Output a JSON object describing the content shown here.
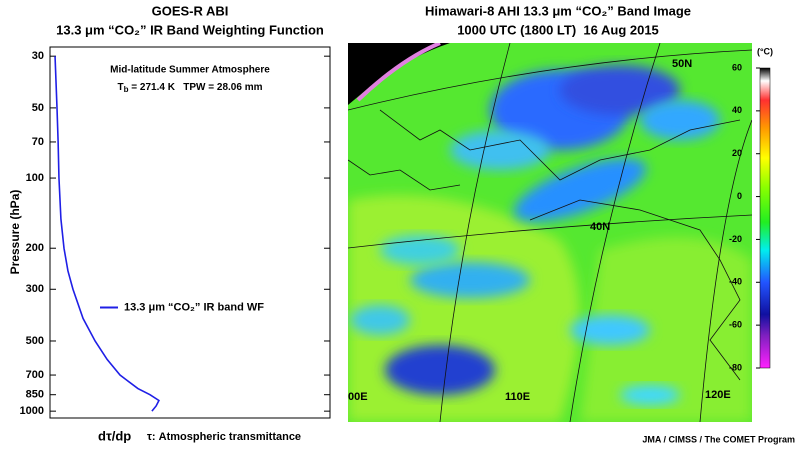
{
  "chart_data": [
    {
      "type": "line",
      "title": "GOES-R ABI",
      "subtitle": "13.3 μm “CO₂” IR Band Weighting Function",
      "annotation": "Mid-latitude Summer Atmosphere",
      "tb_symbol": "T",
      "tb_subscript": "b",
      "tb_text": " = 271.4 K   TPW = 28.06 mm",
      "xlabel": "dτ/dp",
      "xlabel_note": "τ: Atmospheric transmittance",
      "ylabel": "Pressure (hPa)",
      "series": [
        {
          "name": "13.3 μm “CO₂” IR band WF",
          "color": "#1f1fe6",
          "x": [
            0.018,
            0.025,
            0.029,
            0.032,
            0.039,
            0.05,
            0.064,
            0.082,
            0.118,
            0.161,
            0.204,
            0.25,
            0.314,
            0.357,
            0.389,
            0.379,
            0.364
          ],
          "y": [
            30,
            50,
            70,
            100,
            150,
            200,
            250,
            300,
            400,
            500,
            600,
            700,
            800,
            850,
            900,
            950,
            1000
          ]
        }
      ],
      "xlim": [
        0,
        1
      ],
      "ylim": [
        27.4,
        1070
      ],
      "log_y": true,
      "y_reversed": true,
      "yticks": [
        30,
        50,
        70,
        100,
        200,
        300,
        500,
        700,
        850,
        1000
      ],
      "legend": "center"
    },
    {
      "type": "image",
      "title": "Himawari-8 AHI 13.3 μm “CO₂” Band Image",
      "subtitle": "1000 UTC (1800 LT)  16 Aug 2015",
      "map_labels": [
        "50N",
        "40N",
        "00E",
        "110E",
        "120E"
      ],
      "colorbar": {
        "unit": "(°C)",
        "lim": [
          -80,
          60
        ],
        "ticks": [
          60,
          40,
          20,
          0,
          -20,
          -40,
          -60,
          -80
        ],
        "stops": [
          {
            "value": 60,
            "color": "#000000"
          },
          {
            "value": 54,
            "color": "#ffffff"
          },
          {
            "value": 45,
            "color": "#ff3030"
          },
          {
            "value": 32,
            "color": "#ff9900"
          },
          {
            "value": 18,
            "color": "#ffff00"
          },
          {
            "value": 4,
            "color": "#88ff00"
          },
          {
            "value": -12,
            "color": "#22ee22"
          },
          {
            "value": -25,
            "color": "#00eeee"
          },
          {
            "value": -40,
            "color": "#2255ff"
          },
          {
            "value": -55,
            "color": "#1010a0"
          },
          {
            "value": -65,
            "color": "#8020c0"
          },
          {
            "value": -80,
            "color": "#ff20ff"
          }
        ]
      }
    }
  ],
  "credit": "JMA / CIMSS / The COMET Program"
}
